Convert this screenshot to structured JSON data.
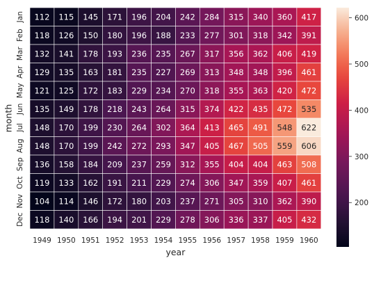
{
  "chart_data": {
    "type": "heatmap",
    "title": "",
    "xlabel": "year",
    "ylabel": "month",
    "x_categories": [
      "1949",
      "1950",
      "1951",
      "1952",
      "1953",
      "1954",
      "1955",
      "1956",
      "1957",
      "1958",
      "1959",
      "1960"
    ],
    "y_categories": [
      "Jan",
      "Feb",
      "Mar",
      "Apr",
      "May",
      "Jun",
      "Jul",
      "Aug",
      "Sep",
      "Oct",
      "Nov",
      "Dec"
    ],
    "values": [
      [
        112,
        115,
        145,
        171,
        196,
        204,
        242,
        284,
        315,
        340,
        360,
        417
      ],
      [
        118,
        126,
        150,
        180,
        196,
        188,
        233,
        277,
        301,
        318,
        342,
        391
      ],
      [
        132,
        141,
        178,
        193,
        236,
        235,
        267,
        317,
        356,
        362,
        406,
        419
      ],
      [
        129,
        135,
        163,
        181,
        235,
        227,
        269,
        313,
        348,
        348,
        396,
        461
      ],
      [
        121,
        125,
        172,
        183,
        229,
        234,
        270,
        318,
        355,
        363,
        420,
        472
      ],
      [
        135,
        149,
        178,
        218,
        243,
        264,
        315,
        374,
        422,
        435,
        472,
        535
      ],
      [
        148,
        170,
        199,
        230,
        264,
        302,
        364,
        413,
        465,
        491,
        548,
        622
      ],
      [
        148,
        170,
        199,
        242,
        272,
        293,
        347,
        405,
        467,
        505,
        559,
        606
      ],
      [
        136,
        158,
        184,
        209,
        237,
        259,
        312,
        355,
        404,
        404,
        463,
        508
      ],
      [
        119,
        133,
        162,
        191,
        211,
        229,
        274,
        306,
        347,
        359,
        407,
        461
      ],
      [
        104,
        114,
        146,
        172,
        180,
        203,
        237,
        271,
        305,
        310,
        362,
        390
      ],
      [
        118,
        140,
        166,
        194,
        201,
        229,
        278,
        306,
        336,
        337,
        405,
        432
      ]
    ],
    "colormap": "rocket",
    "vmin": 104,
    "vmax": 622,
    "annotations": true,
    "colorbar_ticks": [
      200,
      300,
      400,
      500,
      600
    ],
    "cell_border_color": "#ffffff"
  }
}
